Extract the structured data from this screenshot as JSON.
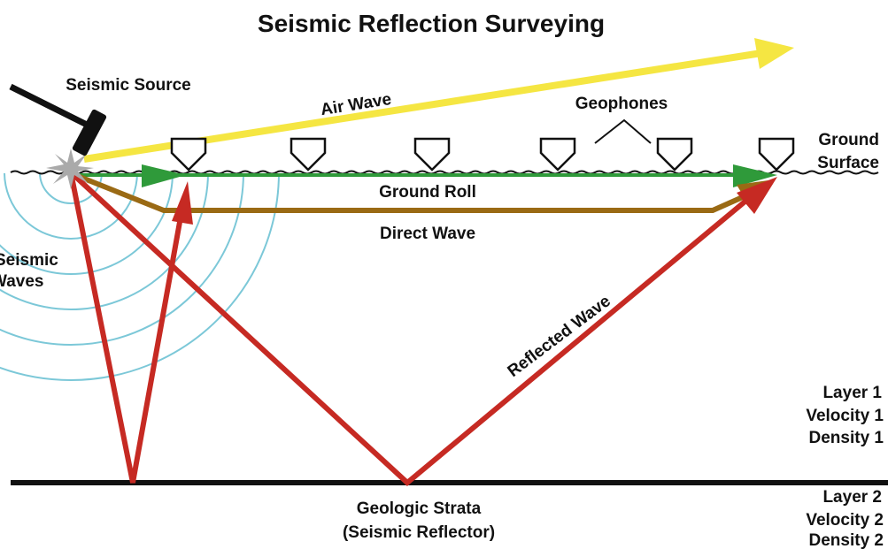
{
  "title": "Seismic Reflection Surveying",
  "labels": {
    "seismic_source": "Seismic Source",
    "air_wave": "Air Wave",
    "geophones": "Geophones",
    "ground_surface": [
      "Ground",
      "Surface"
    ],
    "ground_roll": "Ground Roll",
    "direct_wave": "Direct Wave",
    "seismic_waves": [
      "Seismic",
      "Waves"
    ],
    "reflected_wave": "Reflected Wave",
    "layer_1": [
      "Layer 1",
      "Velocity 1",
      "Density 1"
    ],
    "reflector": [
      "Geologic Strata",
      "(Seismic Reflector)"
    ],
    "layer_2": [
      "Layer 2",
      "Velocity 2",
      "Density 2"
    ]
  }
}
